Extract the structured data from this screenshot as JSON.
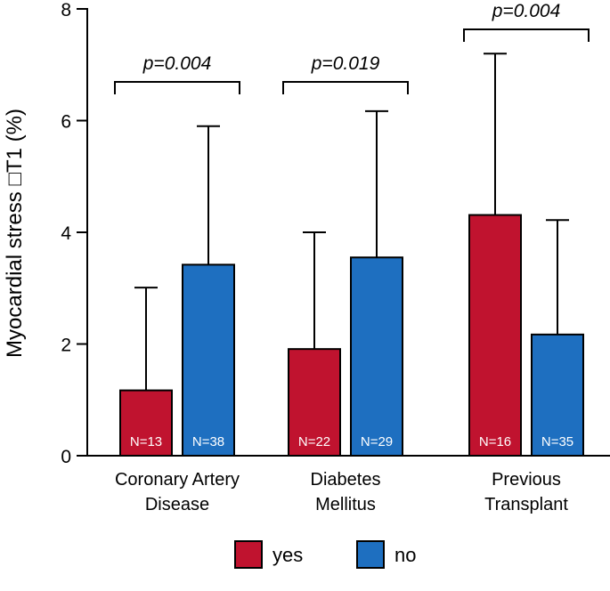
{
  "chart_data": {
    "type": "bar",
    "title": "",
    "ylabel": "Myocardial stress □T1 (%)",
    "xlabel": "",
    "ylim": [
      0,
      8
    ],
    "yticks": [
      "0",
      "2",
      "4",
      "6",
      "8"
    ],
    "categories": [
      {
        "lines": [
          "Coronary Artery",
          "Disease"
        ]
      },
      {
        "lines": [
          "Diabetes",
          "Mellitus"
        ]
      },
      {
        "lines": [
          "Previous",
          "Transplant"
        ]
      }
    ],
    "series": [
      {
        "name": "yes",
        "color": "#c0132f",
        "values": [
          1.17,
          1.91,
          4.31
        ],
        "errors": [
          3.01,
          4.0,
          7.2
        ],
        "n_labels": [
          "N=13",
          "N=22",
          "N=16"
        ]
      },
      {
        "name": "no",
        "color": "#1e6fc0",
        "values": [
          3.42,
          3.55,
          2.17
        ],
        "errors": [
          5.9,
          6.17,
          4.22
        ],
        "n_labels": [
          "N=38",
          "N=29",
          "N=35"
        ]
      }
    ],
    "annotations": [
      "p=0.004",
      "p=0.019",
      "p=0.004"
    ],
    "legend": {
      "placement": "bottom",
      "items": [
        "yes",
        "no"
      ]
    }
  }
}
